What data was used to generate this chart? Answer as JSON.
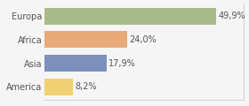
{
  "categories": [
    "Europa",
    "Africa",
    "Asia",
    "America"
  ],
  "values": [
    49.9,
    24.0,
    17.9,
    8.2
  ],
  "labels": [
    "49,9%",
    "24,0%",
    "17,9%",
    "8,2%"
  ],
  "bar_colors": [
    "#a8bb8a",
    "#e8aa78",
    "#7b90bb",
    "#f0d070"
  ],
  "background_color": "#f5f5f5",
  "max_val": 58,
  "label_fontsize": 7.0,
  "tick_fontsize": 7.0,
  "bar_height": 0.72
}
